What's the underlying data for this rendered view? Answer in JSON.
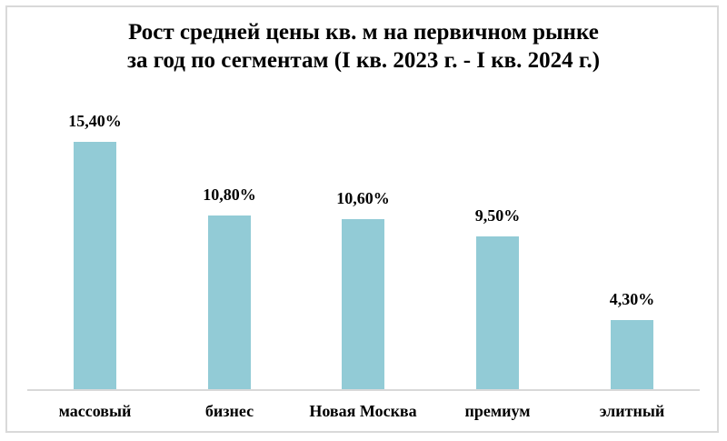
{
  "chart_data": {
    "type": "bar",
    "title": "Рост средней цены кв. м на первичном рынке за год по сегментам (I кв. 2023 г. - I кв. 2024 г.)",
    "title_lines": [
      "Рост средней цены кв. м на первичном рынке",
      "за год по сегментам (I кв. 2023 г. - I кв. 2024 г.)"
    ],
    "categories": [
      "массовый",
      "бизнес",
      "Новая Москва",
      "премиум",
      "элитный"
    ],
    "values": [
      15.4,
      10.8,
      10.6,
      9.5,
      4.3
    ],
    "data_labels": [
      "15,40%",
      "10,80%",
      "10,60%",
      "9,50%",
      "4,30%"
    ],
    "xlabel": "",
    "ylabel": "",
    "ylim": [
      0,
      15.4
    ],
    "grid": false,
    "legend": null,
    "bar_color": "#92CBD6"
  }
}
